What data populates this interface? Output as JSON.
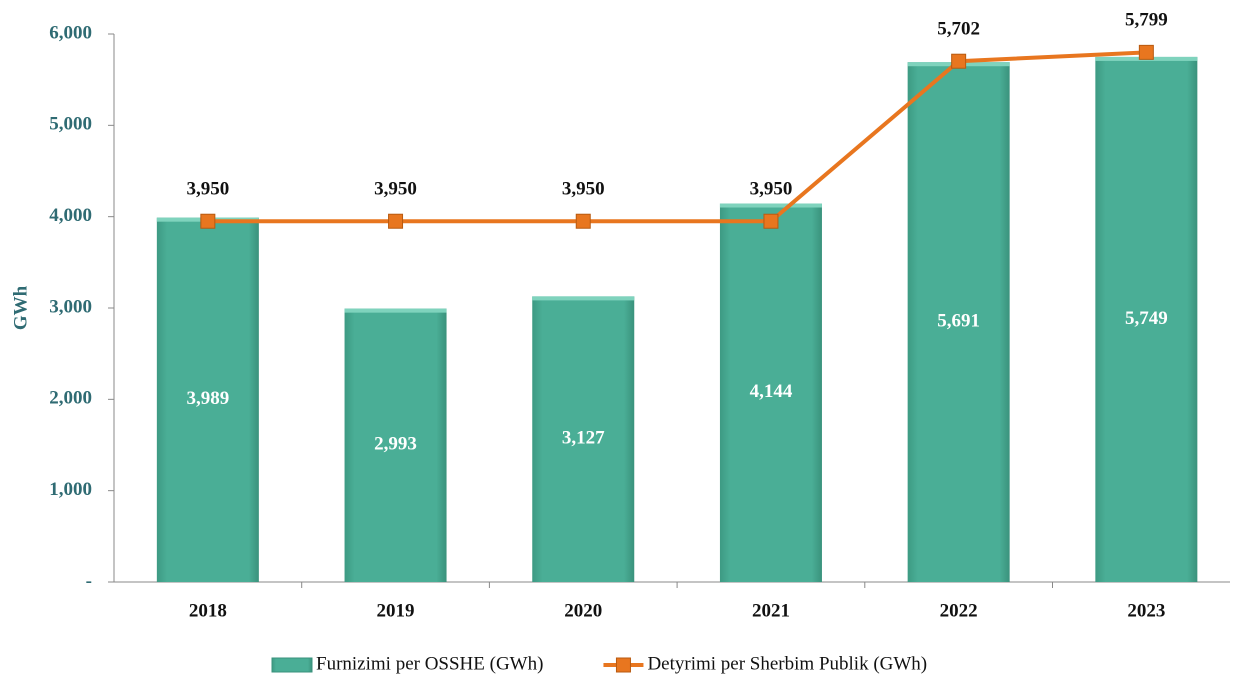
{
  "chart_data": {
    "type": "bar",
    "y_label": "GWh",
    "categories": [
      "2018",
      "2019",
      "2020",
      "2021",
      "2022",
      "2023"
    ],
    "series": [
      {
        "name": "Furnizimi per OSSHE (GWh)",
        "type": "bar",
        "color": "#4aae96",
        "values": [
          3989,
          2993,
          3127,
          4144,
          5691,
          5749
        ],
        "value_labels": [
          "3,989",
          "2,993",
          "3,127",
          "4,144",
          "5,691",
          "5,749"
        ]
      },
      {
        "name": "Detyrimi per Sherbim Publik (GWh)",
        "type": "line",
        "color": "#e8761f",
        "values": [
          3950,
          3950,
          3950,
          3950,
          5702,
          5799
        ],
        "value_labels": [
          "3,950",
          "3,950",
          "3,950",
          "3,950",
          "5,702",
          "5,799"
        ]
      }
    ],
    "ylim": [
      0,
      6000
    ],
    "yticks": [
      {
        "value": 0,
        "label": "-"
      },
      {
        "value": 1000,
        "label": "1,000"
      },
      {
        "value": 2000,
        "label": "2,000"
      },
      {
        "value": 3000,
        "label": "3,000"
      },
      {
        "value": 4000,
        "label": "4,000"
      },
      {
        "value": 5000,
        "label": "5,000"
      },
      {
        "value": 6000,
        "label": "6,000"
      }
    ],
    "grid": false,
    "legend": "bottom"
  }
}
